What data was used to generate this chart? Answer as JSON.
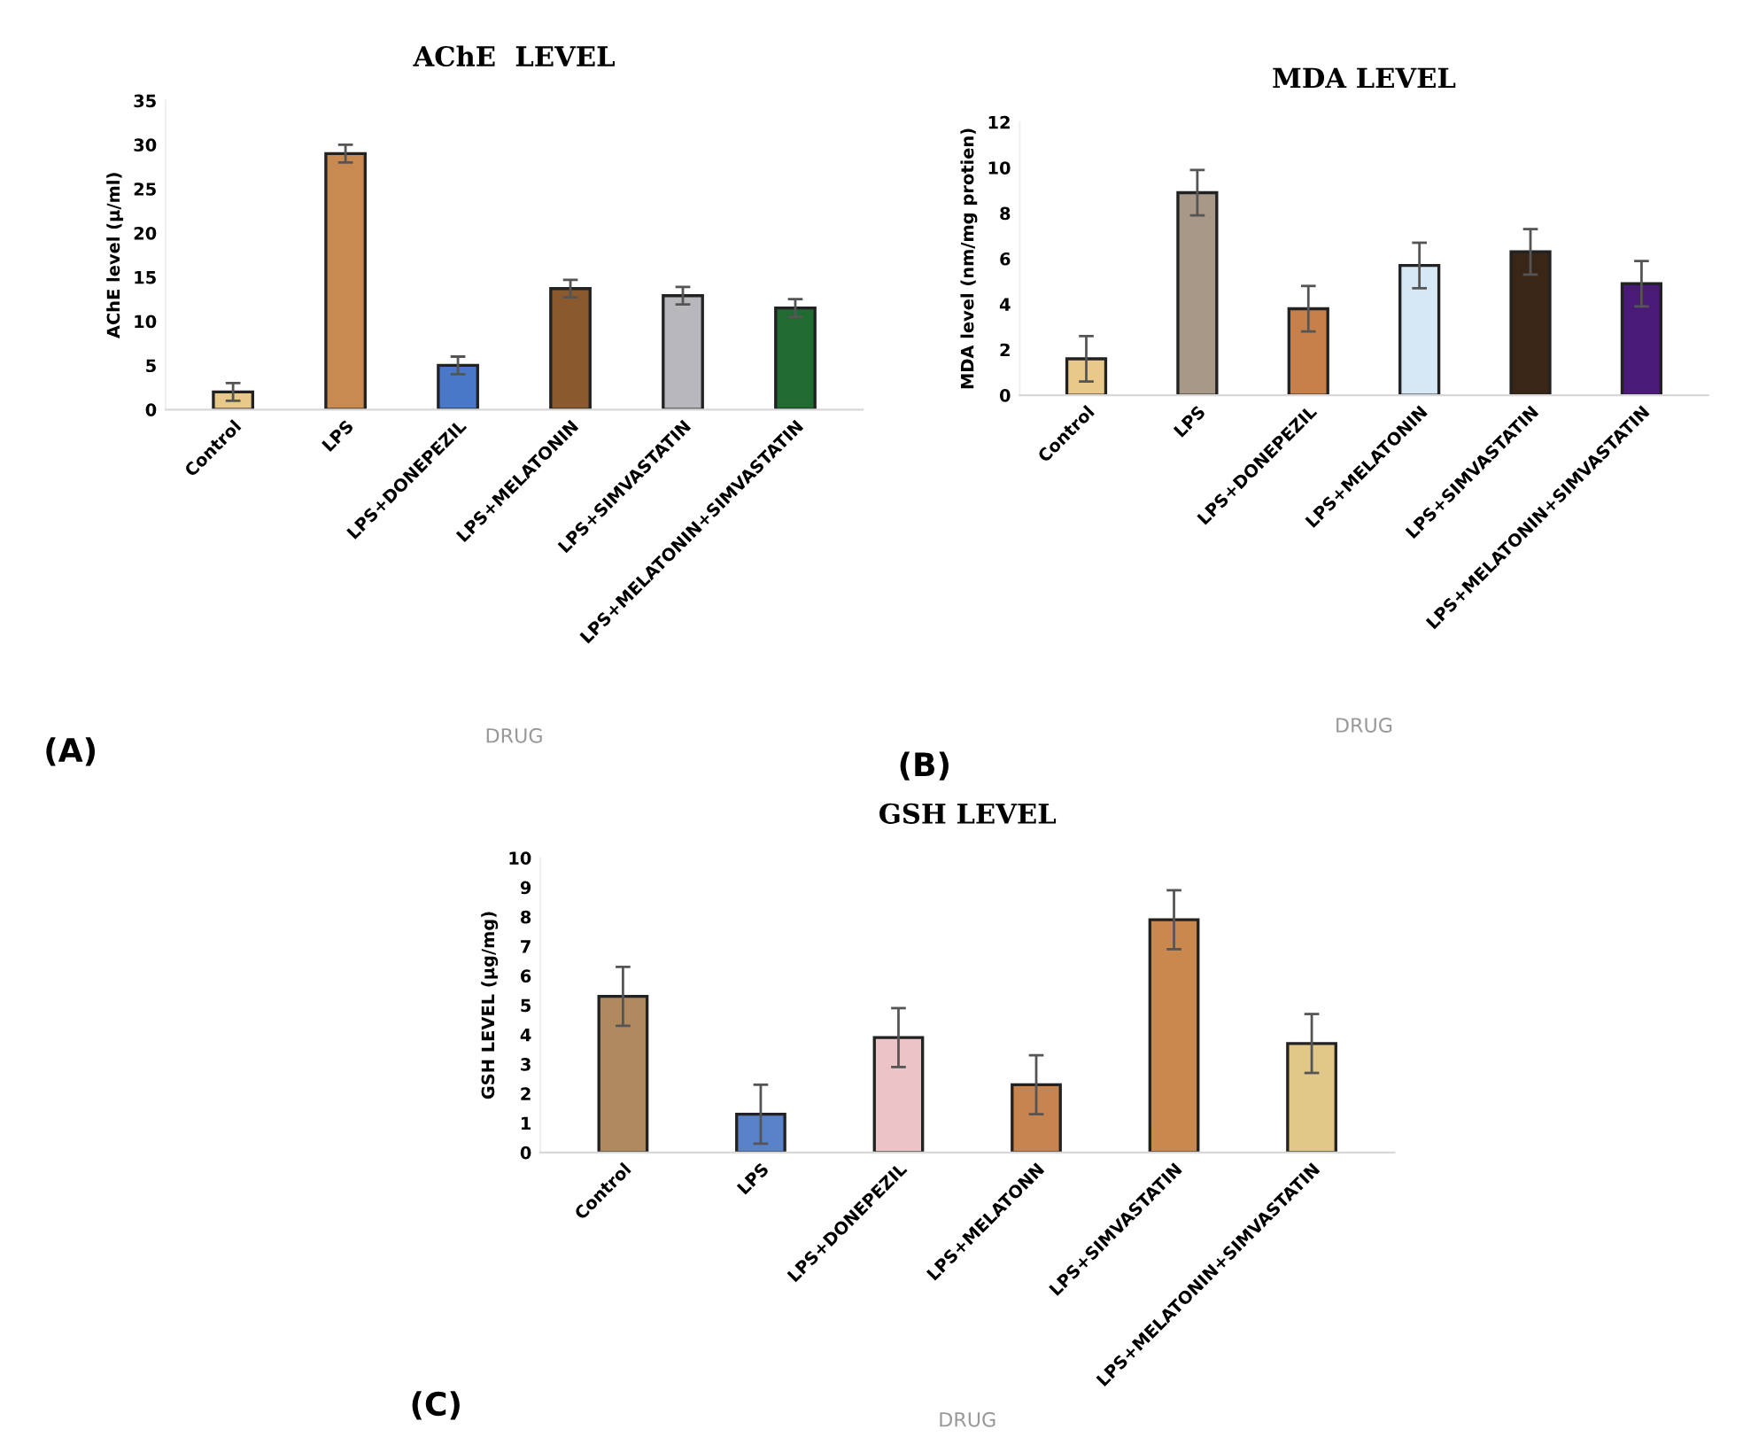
{
  "chart_data": [
    {
      "type": "bar",
      "title": "AChE  LEVEL",
      "xlabel": "DRUG",
      "ylabel": "AChE level (µ/ml)",
      "categories": [
        "Control",
        "LPS",
        "LPS+DONEPEZIL",
        "LPS+MELATONIN",
        "LPS+SIMVASTATIN",
        "LPS+MELATONIN+SIMVASTATIN"
      ],
      "values": [
        2,
        29,
        5,
        13.7,
        12.9,
        11.5
      ],
      "errors": [
        1,
        1,
        1,
        1,
        1,
        1
      ],
      "colors": [
        "#e8c98a",
        "#c98a52",
        "#4a78c8",
        "#8a5a2e",
        "#b8b8bc",
        "#1f6b32"
      ],
      "ylim": [
        0,
        35
      ],
      "yticks": [
        0,
        5,
        10,
        15,
        20,
        25,
        30,
        35
      ],
      "grid": false,
      "annotations": [
        "(A)"
      ]
    },
    {
      "type": "bar",
      "title": "MDA LEVEL",
      "xlabel": "DRUG",
      "ylabel": "MDA level (nm/mg protien)",
      "categories": [
        "Control",
        "LPS",
        "LPS+DONEPEZIL",
        "LPS+MELATONIN",
        "LPS+SIMVASTATIN",
        "LPS+MELATONIN+SIMVASTATIN"
      ],
      "values": [
        1.6,
        8.9,
        3.8,
        5.7,
        6.3,
        4.9
      ],
      "errors": [
        1,
        1,
        1,
        1,
        1,
        1
      ],
      "colors": [
        "#e8c98a",
        "#a89888",
        "#c8804a",
        "#d6e8f6",
        "#3a2616",
        "#4a1a78"
      ],
      "ylim": [
        0,
        12
      ],
      "yticks": [
        0,
        2,
        4,
        6,
        8,
        10,
        12
      ],
      "grid": false,
      "annotations": [
        "(B)"
      ]
    },
    {
      "type": "bar",
      "title": "GSH LEVEL",
      "xlabel": "DRUG",
      "ylabel": "GSH LEVEL (µg/mg)",
      "categories": [
        "Control",
        "LPS",
        "LPS+DONEPEZIL",
        "LPS+MELATONN",
        "LPS+SIMVASTATIN",
        "LPS+MELATONIN+SIMVASTATIN"
      ],
      "values": [
        5.3,
        1.3,
        3.9,
        2.3,
        7.9,
        3.7
      ],
      "errors": [
        1,
        1,
        1,
        1,
        1,
        1
      ],
      "colors": [
        "#b08a5e",
        "#5a82c8",
        "#ecc4c8",
        "#c8844e",
        "#c8884e",
        "#e2c888"
      ],
      "ylim": [
        0,
        10
      ],
      "yticks": [
        0,
        1,
        2,
        3,
        4,
        5,
        6,
        7,
        8,
        9,
        10
      ],
      "grid": false,
      "annotations": [
        "(C)"
      ]
    }
  ]
}
